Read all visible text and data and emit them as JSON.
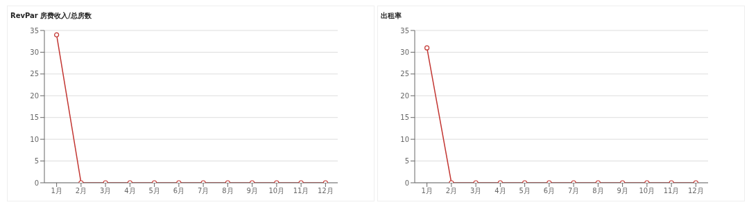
{
  "chart_data": [
    {
      "type": "line",
      "title": "RevPar 房费收入/总房数",
      "categories": [
        "1月",
        "2月",
        "3月",
        "4月",
        "5月",
        "6月",
        "7月",
        "8月",
        "9月",
        "10月",
        "11月",
        "12月"
      ],
      "values": [
        34,
        0,
        0,
        0,
        0,
        0,
        0,
        0,
        0,
        0,
        0,
        0
      ],
      "color": "#c23531",
      "ylim": [
        0,
        35
      ],
      "yticks": [
        0,
        5,
        10,
        15,
        20,
        25,
        30,
        35
      ],
      "grid": "y",
      "marker": "circle"
    },
    {
      "type": "line",
      "title": "出租率",
      "categories": [
        "1月",
        "2月",
        "3月",
        "4月",
        "5月",
        "6月",
        "7月",
        "8月",
        "9月",
        "10月",
        "11月",
        "12月"
      ],
      "values": [
        31,
        0,
        0,
        0,
        0,
        0,
        0,
        0,
        0,
        0,
        0,
        0
      ],
      "color": "#c23531",
      "ylim": [
        0,
        35
      ],
      "yticks": [
        0,
        5,
        10,
        15,
        20,
        25,
        30,
        35
      ],
      "grid": "y",
      "marker": "circle"
    }
  ]
}
